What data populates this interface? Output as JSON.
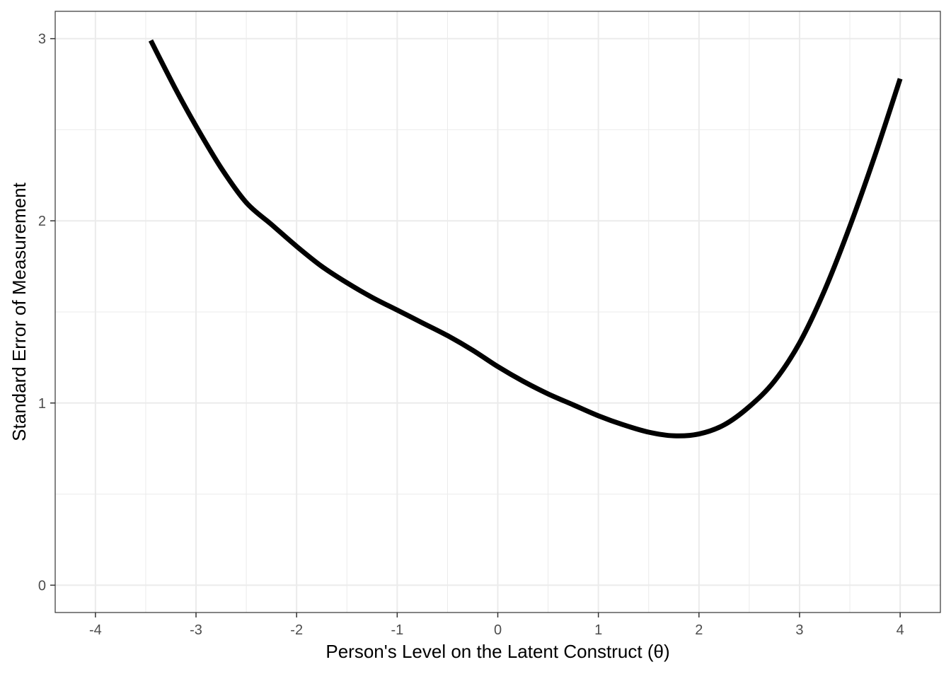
{
  "chart_data": {
    "type": "line",
    "title": "",
    "xlabel": "Person's Level on the Latent Construct (θ)",
    "ylabel": "Standard Error of Measurement",
    "xlim": [
      -4.4,
      4.4
    ],
    "ylim": [
      -0.15,
      3.15
    ],
    "x_ticks": [
      -4,
      -3,
      -2,
      -1,
      0,
      1,
      2,
      3,
      4
    ],
    "x_tick_labels": [
      "-4",
      "-3",
      "-2",
      "-1",
      "0",
      "1",
      "2",
      "3",
      "4"
    ],
    "y_ticks": [
      0,
      1,
      2,
      3
    ],
    "y_tick_labels": [
      "0",
      "1",
      "2",
      "3"
    ],
    "grid": true,
    "legend": "none",
    "colors": {
      "line": "#000000",
      "grid": "#ebebeb",
      "panel_border": "#333333"
    },
    "series": [
      {
        "x": [
          -3.45,
          -3.2,
          -3.0,
          -2.75,
          -2.5,
          -2.25,
          -2.0,
          -1.75,
          -1.5,
          -1.25,
          -1.0,
          -0.75,
          -0.5,
          -0.25,
          0.0,
          0.25,
          0.5,
          0.75,
          1.0,
          1.25,
          1.5,
          1.75,
          2.0,
          2.25,
          2.5,
          2.75,
          3.0,
          3.25,
          3.5,
          3.75,
          4.0
        ],
        "y": [
          2.99,
          2.72,
          2.52,
          2.29,
          2.1,
          1.98,
          1.86,
          1.75,
          1.66,
          1.58,
          1.51,
          1.44,
          1.37,
          1.29,
          1.2,
          1.12,
          1.05,
          0.99,
          0.93,
          0.88,
          0.84,
          0.82,
          0.83,
          0.88,
          0.98,
          1.12,
          1.33,
          1.62,
          1.97,
          2.36,
          2.78
        ]
      }
    ]
  }
}
